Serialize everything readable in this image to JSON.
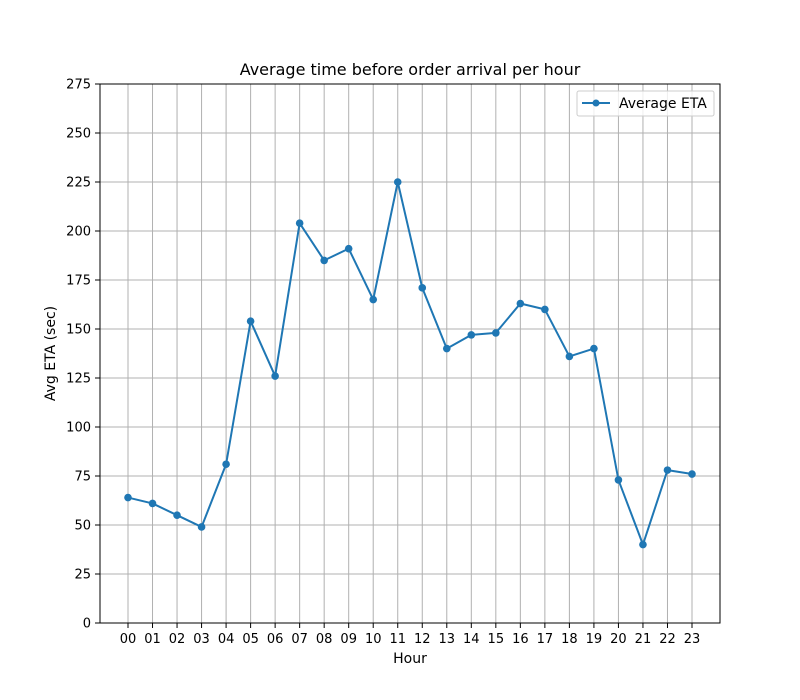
{
  "chart_data": {
    "type": "line",
    "title": "Average time before order arrival per hour",
    "xlabel": "Hour",
    "ylabel": "Avg ETA (sec)",
    "categories": [
      "00",
      "01",
      "02",
      "03",
      "04",
      "05",
      "06",
      "07",
      "08",
      "09",
      "10",
      "11",
      "12",
      "13",
      "14",
      "15",
      "16",
      "17",
      "18",
      "19",
      "20",
      "21",
      "22",
      "23"
    ],
    "series": [
      {
        "name": "Average ETA",
        "color": "#1f77b4",
        "values": [
          64,
          61,
          55,
          49,
          81,
          154,
          126,
          204,
          185,
          191,
          165,
          225,
          171,
          140,
          147,
          148,
          163,
          160,
          136,
          140,
          73,
          40,
          78,
          76
        ]
      }
    ],
    "ylim": [
      0,
      275
    ],
    "yticks": [
      0,
      25,
      50,
      75,
      100,
      125,
      150,
      175,
      200,
      225,
      250,
      275
    ],
    "grid": true,
    "legend_position": "top-right"
  }
}
